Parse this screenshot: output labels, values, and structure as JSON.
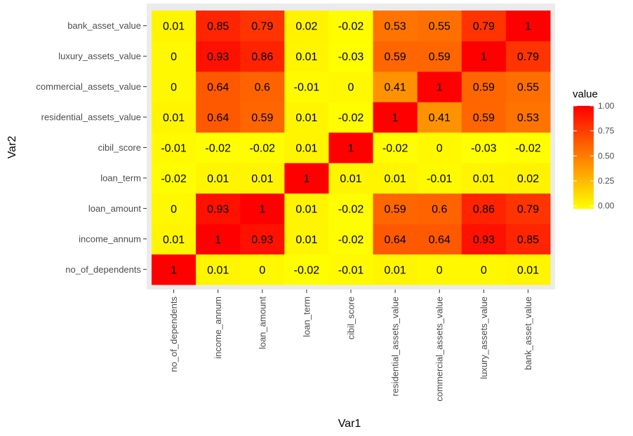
{
  "chart_data": {
    "type": "heatmap",
    "xlabel": "Var1",
    "ylabel": "Var2",
    "x_categories": [
      "no_of_dependents",
      "income_annum",
      "loan_amount",
      "loan_term",
      "cibil_score",
      "residential_assets_value",
      "commercial_assets_value",
      "luxury_assets_value",
      "bank_asset_value"
    ],
    "y_categories": [
      "no_of_dependents",
      "income_annum",
      "loan_amount",
      "loan_term",
      "cibil_score",
      "residential_assets_value",
      "commercial_assets_value",
      "luxury_assets_value",
      "bank_asset_value"
    ],
    "values": [
      [
        1,
        0.01,
        0,
        -0.02,
        -0.01,
        0.01,
        0,
        0,
        0.01
      ],
      [
        0.01,
        1,
        0.93,
        0.01,
        -0.02,
        0.64,
        0.64,
        0.93,
        0.85
      ],
      [
        0,
        0.93,
        1,
        0.01,
        -0.02,
        0.59,
        0.6,
        0.86,
        0.79
      ],
      [
        -0.02,
        0.01,
        0.01,
        1,
        0.01,
        0.01,
        -0.01,
        0.01,
        0.02
      ],
      [
        -0.01,
        -0.02,
        -0.02,
        0.01,
        1,
        -0.02,
        0,
        -0.03,
        -0.02
      ],
      [
        0.01,
        0.64,
        0.59,
        0.01,
        -0.02,
        1,
        0.41,
        0.59,
        0.53
      ],
      [
        0,
        0.64,
        0.6,
        -0.01,
        0,
        0.41,
        1,
        0.59,
        0.55
      ],
      [
        0,
        0.93,
        0.86,
        0.01,
        -0.03,
        0.59,
        0.59,
        1,
        0.79
      ],
      [
        0.01,
        0.85,
        0.79,
        0.02,
        -0.02,
        0.53,
        0.55,
        0.79,
        1
      ]
    ],
    "legend": {
      "title": "value",
      "placement": "right",
      "ticks": [
        "1.00",
        "0.75",
        "0.50",
        "0.25",
        "0.00"
      ],
      "tick_values": [
        1.0,
        0.75,
        0.5,
        0.25,
        0.0
      ],
      "low_color": "#ffff00",
      "high_color": "#ff0000",
      "range": [
        -0.03,
        1.0
      ]
    },
    "panel_background": "#ebebeb"
  }
}
